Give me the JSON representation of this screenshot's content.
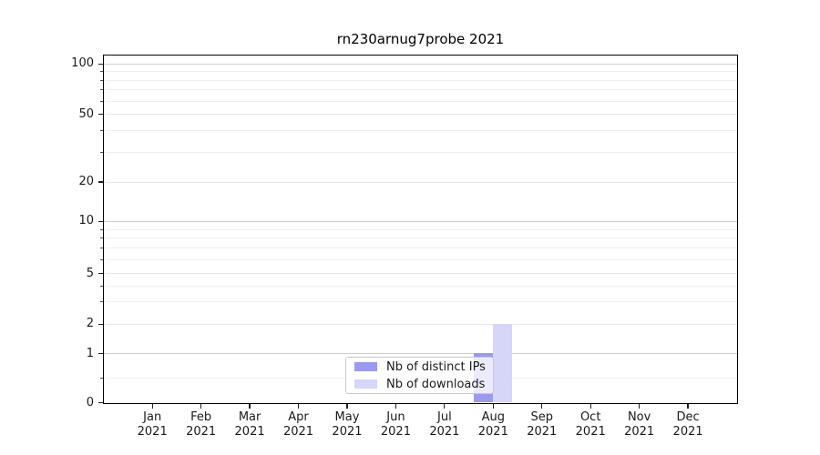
{
  "chart_data": {
    "type": "bar",
    "title": "rn230arnug7probe 2021",
    "x": {
      "categories": [
        "Jan",
        "Feb",
        "Mar",
        "Apr",
        "May",
        "Jun",
        "Jul",
        "Aug",
        "Sep",
        "Oct",
        "Nov",
        "Dec"
      ],
      "year_label": "2021"
    },
    "series": [
      {
        "name": "Nb of distinct IPs",
        "color": "#9a9aef",
        "values": [
          0,
          0,
          0,
          0,
          0,
          0,
          0,
          1,
          0,
          0,
          0,
          0
        ]
      },
      {
        "name": "Nb of downloads",
        "color": "#d6d6f8",
        "values": [
          0,
          0,
          0,
          0,
          0,
          0,
          0,
          2,
          0,
          0,
          0,
          0
        ]
      }
    ],
    "y_axis": {
      "scale": "symlog",
      "ticks": [
        0,
        1,
        2,
        5,
        10,
        20,
        50,
        100
      ],
      "decade_ticks": [
        1,
        10,
        100
      ],
      "minor_ticks": [
        0.5,
        3,
        4,
        6,
        7,
        8,
        9,
        30,
        40,
        60,
        70,
        80,
        90
      ],
      "ylim": [
        0,
        110
      ]
    },
    "grid": true,
    "legend": {
      "position": "lower-center"
    },
    "colors": {
      "grid_major": "#cfcfcf",
      "grid_minor": "#efefef",
      "spine": "#000000",
      "text": "#1a1a1a"
    }
  }
}
